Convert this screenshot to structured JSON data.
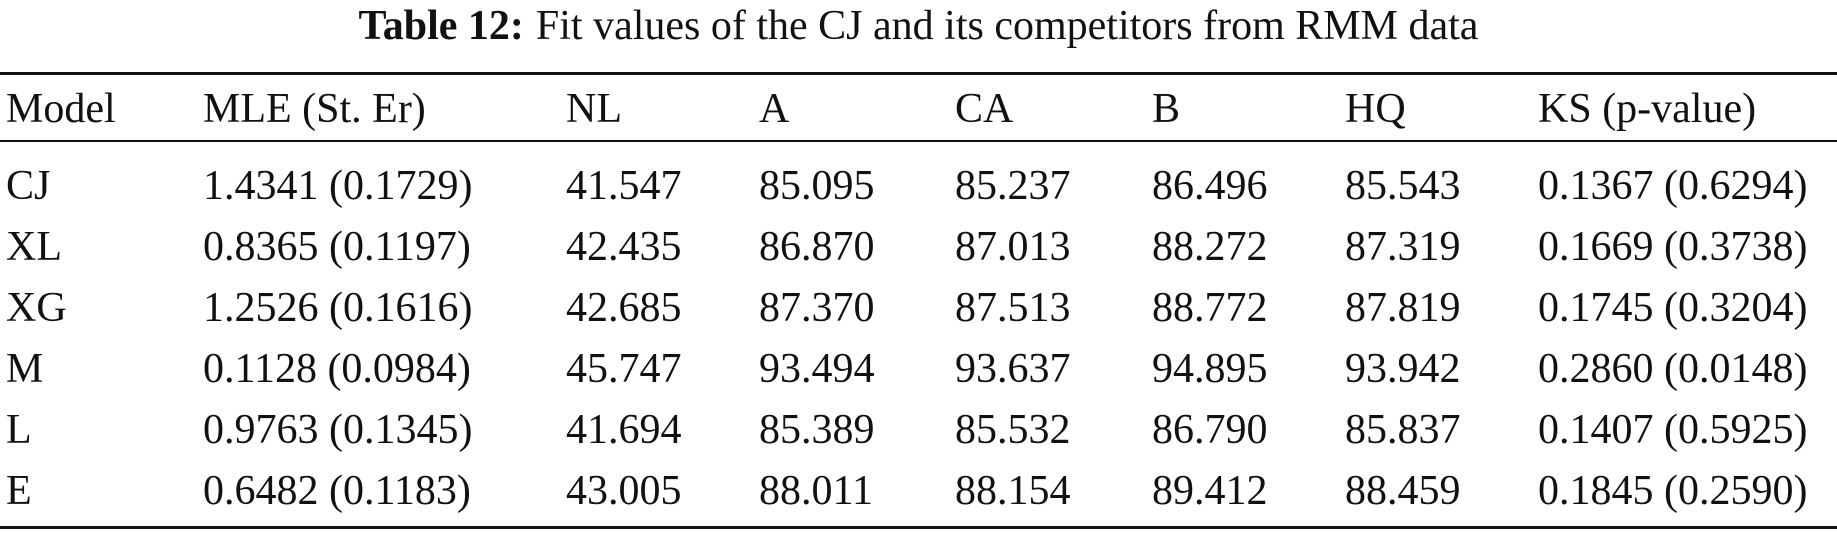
{
  "caption": {
    "label": "Table 12:",
    "text": "Fit values of the CJ and its competitors from RMM data"
  },
  "table": {
    "header": [
      "Model",
      "MLE (St. Er)",
      "NL",
      "A",
      "CA",
      "B",
      "HQ",
      "KS (p-value)"
    ],
    "rows": [
      [
        "CJ",
        "1.4341 (0.1729)",
        "41.547",
        "85.095",
        "85.237",
        "86.496",
        "85.543",
        "0.1367 (0.6294)"
      ],
      [
        "XL",
        "0.8365 (0.1197)",
        "42.435",
        "86.870",
        "87.013",
        "88.272",
        "87.319",
        "0.1669 (0.3738)"
      ],
      [
        "XG",
        "1.2526 (0.1616)",
        "42.685",
        "87.370",
        "87.513",
        "88.772",
        "87.819",
        "0.1745 (0.3204)"
      ],
      [
        "M",
        "0.1128 (0.0984)",
        "45.747",
        "93.494",
        "93.637",
        "94.895",
        "93.942",
        "0.2860 (0.0148)"
      ],
      [
        "L",
        "0.9763 (0.1345)",
        "41.694",
        "85.389",
        "85.532",
        "86.790",
        "85.837",
        "0.1407 (0.5925)"
      ],
      [
        "E",
        "0.6482 (0.1183)",
        "43.005",
        "88.011",
        "88.154",
        "89.412",
        "88.459",
        "0.1845 (0.2590)"
      ]
    ]
  }
}
